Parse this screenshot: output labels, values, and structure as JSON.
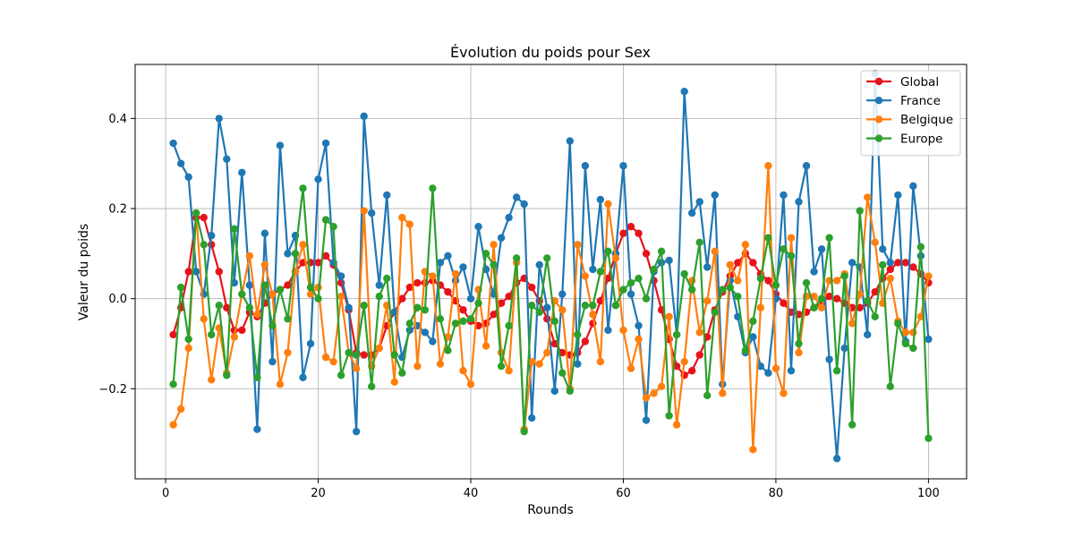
{
  "chart_data": {
    "type": "line",
    "title": "Évolution du poids pour Sex",
    "xlabel": "Rounds",
    "ylabel": "Valeur du poids",
    "xlim": [
      -4,
      105
    ],
    "ylim": [
      -0.4,
      0.52
    ],
    "xticks": [
      0,
      20,
      40,
      60,
      80,
      100
    ],
    "yticks": [
      -0.2,
      0.0,
      0.2,
      0.4
    ],
    "ytick_labels": [
      "−0.2",
      "0.0",
      "0.2",
      "0.4"
    ],
    "grid": true,
    "legend_position": "top-right",
    "x": [
      1,
      2,
      3,
      4,
      5,
      6,
      7,
      8,
      9,
      10,
      11,
      12,
      13,
      14,
      15,
      16,
      17,
      18,
      19,
      20,
      21,
      22,
      23,
      24,
      25,
      26,
      27,
      28,
      29,
      30,
      31,
      32,
      33,
      34,
      35,
      36,
      37,
      38,
      39,
      40,
      41,
      42,
      43,
      44,
      45,
      46,
      47,
      48,
      49,
      50,
      51,
      52,
      53,
      54,
      55,
      56,
      57,
      58,
      59,
      60,
      61,
      62,
      63,
      64,
      65,
      66,
      67,
      68,
      69,
      70,
      71,
      72,
      73,
      74,
      75,
      76,
      77,
      78,
      79,
      80,
      81,
      82,
      83,
      84,
      85,
      86,
      87,
      88,
      89,
      90,
      91,
      92,
      93,
      94,
      95,
      96,
      97,
      98,
      99,
      100
    ],
    "series": [
      {
        "name": "Global",
        "color": "#e8121a",
        "values": [
          -0.08,
          -0.02,
          0.06,
          0.18,
          0.18,
          0.12,
          0.06,
          -0.02,
          -0.07,
          -0.07,
          -0.03,
          -0.04,
          -0.01,
          0.01,
          0.02,
          0.03,
          0.06,
          0.08,
          0.08,
          0.08,
          0.095,
          0.075,
          0.035,
          -0.025,
          -0.12,
          -0.125,
          -0.125,
          -0.11,
          -0.06,
          -0.03,
          0.0,
          0.025,
          0.035,
          0.035,
          0.04,
          0.03,
          0.015,
          -0.005,
          -0.025,
          -0.05,
          -0.06,
          -0.055,
          -0.035,
          -0.01,
          0.005,
          0.035,
          0.045,
          0.025,
          -0.005,
          -0.045,
          -0.1,
          -0.12,
          -0.125,
          -0.12,
          -0.095,
          -0.055,
          -0.005,
          0.045,
          0.1,
          0.145,
          0.16,
          0.145,
          0.1,
          0.04,
          -0.025,
          -0.09,
          -0.15,
          -0.17,
          -0.16,
          -0.125,
          -0.085,
          -0.025,
          0.015,
          0.05,
          0.08,
          0.1,
          0.08,
          0.055,
          0.04,
          0.01,
          -0.01,
          -0.03,
          -0.035,
          -0.03,
          -0.02,
          -0.01,
          0.005,
          0.0,
          -0.01,
          -0.02,
          -0.02,
          -0.01,
          0.015,
          0.045,
          0.065,
          0.08,
          0.08,
          0.07,
          0.055,
          0.035
        ]
      },
      {
        "name": "France",
        "color": "#1f77b4",
        "values": [
          0.345,
          0.3,
          0.27,
          0.06,
          0.01,
          0.14,
          0.4,
          0.31,
          0.035,
          0.28,
          0.03,
          -0.29,
          0.145,
          -0.14,
          0.34,
          0.1,
          0.14,
          -0.175,
          -0.1,
          0.265,
          0.345,
          0.08,
          0.05,
          -0.02,
          -0.295,
          0.405,
          0.19,
          0.03,
          0.23,
          -0.03,
          -0.13,
          -0.07,
          -0.06,
          -0.075,
          -0.095,
          0.08,
          0.095,
          0.04,
          0.07,
          0.0,
          0.16,
          0.065,
          0.01,
          0.135,
          0.18,
          0.225,
          0.21,
          -0.265,
          0.075,
          -0.02,
          -0.205,
          0.01,
          0.35,
          -0.145,
          0.295,
          0.065,
          0.22,
          -0.07,
          0.1,
          0.295,
          0.01,
          -0.06,
          -0.27,
          0.06,
          0.08,
          0.085,
          -0.08,
          0.46,
          0.19,
          0.215,
          0.07,
          0.23,
          -0.19,
          0.04,
          -0.04,
          -0.12,
          -0.085,
          -0.15,
          -0.165,
          0.0,
          0.23,
          -0.16,
          0.215,
          0.295,
          0.06,
          0.11,
          -0.135,
          -0.355,
          -0.11,
          0.08,
          0.07,
          -0.08,
          0.5,
          0.11,
          0.08,
          0.23,
          -0.095,
          0.25,
          0.095,
          -0.09
        ]
      },
      {
        "name": "Belgique",
        "color": "#ff7f0e",
        "values": [
          -0.28,
          -0.245,
          -0.11,
          0.19,
          -0.045,
          -0.18,
          -0.065,
          -0.165,
          -0.085,
          0.01,
          0.095,
          -0.035,
          0.075,
          0.01,
          -0.19,
          -0.12,
          0.06,
          0.12,
          0.01,
          0.025,
          -0.13,
          -0.14,
          0.005,
          -0.12,
          -0.155,
          0.195,
          -0.15,
          -0.11,
          -0.015,
          -0.185,
          0.18,
          0.165,
          -0.15,
          0.06,
          0.05,
          -0.145,
          -0.085,
          0.055,
          -0.16,
          -0.19,
          0.02,
          -0.105,
          0.12,
          -0.12,
          -0.16,
          0.08,
          -0.29,
          -0.14,
          -0.145,
          -0.12,
          -0.005,
          -0.025,
          -0.2,
          0.12,
          0.05,
          -0.035,
          -0.14,
          0.21,
          0.09,
          -0.07,
          -0.155,
          -0.09,
          -0.22,
          -0.21,
          -0.195,
          -0.04,
          -0.28,
          -0.14,
          0.04,
          -0.075,
          -0.005,
          0.105,
          -0.21,
          0.075,
          0.04,
          0.12,
          -0.335,
          -0.02,
          0.295,
          -0.155,
          -0.21,
          0.135,
          -0.12,
          0.005,
          0.005,
          -0.02,
          0.04,
          0.04,
          0.055,
          -0.055,
          0.01,
          0.225,
          0.125,
          -0.01,
          0.045,
          -0.05,
          -0.075,
          -0.075,
          -0.04,
          0.05
        ]
      },
      {
        "name": "Europe",
        "color": "#2ca02c",
        "values": [
          -0.19,
          0.025,
          -0.09,
          0.19,
          0.12,
          -0.08,
          -0.015,
          -0.17,
          0.155,
          0.01,
          -0.02,
          -0.175,
          0.03,
          -0.06,
          0.02,
          -0.045,
          0.1,
          0.245,
          0.025,
          0.0,
          0.175,
          0.16,
          -0.17,
          -0.12,
          -0.125,
          -0.015,
          -0.195,
          0.005,
          0.045,
          -0.125,
          -0.165,
          -0.055,
          -0.02,
          -0.025,
          0.245,
          -0.045,
          -0.115,
          -0.055,
          -0.05,
          -0.045,
          -0.01,
          0.1,
          0.075,
          -0.15,
          -0.06,
          0.09,
          -0.295,
          -0.015,
          -0.03,
          0.09,
          -0.05,
          -0.165,
          -0.205,
          -0.08,
          -0.015,
          -0.015,
          0.06,
          0.105,
          -0.015,
          0.02,
          0.035,
          0.045,
          0.0,
          0.065,
          0.105,
          -0.26,
          -0.08,
          0.055,
          0.02,
          0.125,
          -0.215,
          -0.03,
          0.02,
          0.025,
          0.005,
          -0.115,
          -0.05,
          0.045,
          0.135,
          0.03,
          0.11,
          0.095,
          -0.1,
          0.035,
          -0.02,
          -0.0,
          0.135,
          -0.16,
          0.05,
          -0.28,
          0.195,
          -0.005,
          -0.04,
          0.075,
          -0.195,
          -0.055,
          -0.1,
          -0.11,
          0.115,
          -0.31
        ]
      }
    ]
  }
}
